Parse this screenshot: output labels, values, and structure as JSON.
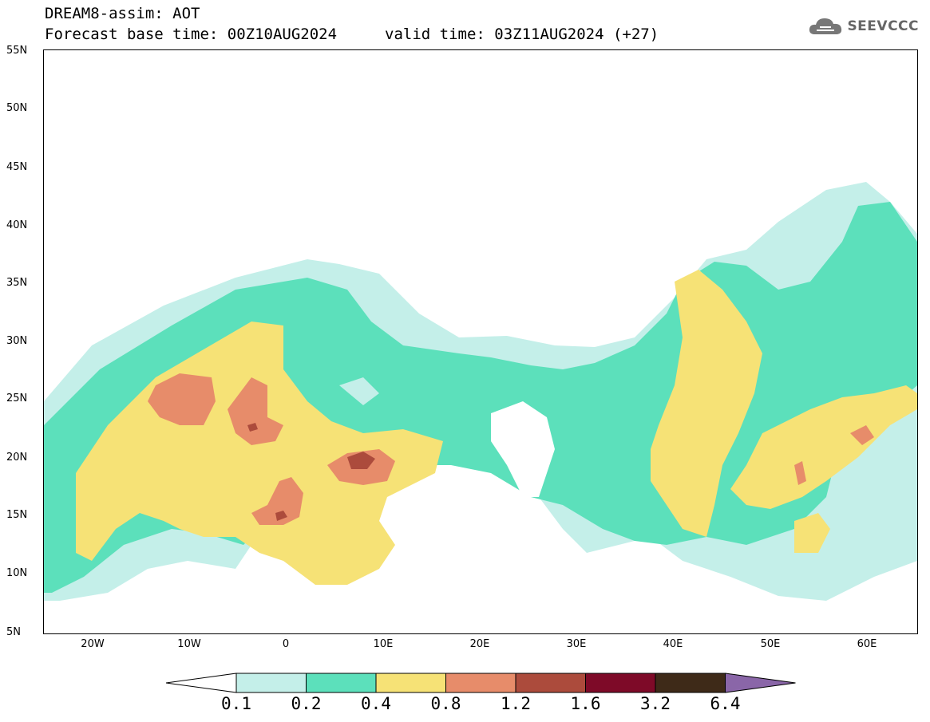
{
  "header": {
    "title_line1": "DREAM8-assim: AOT",
    "title_line2": "Forecast base time: 00Z10AUG2024",
    "valid_time": "valid time: 03Z11AUG2024 (+27)",
    "logo_text": "SEEVCCC",
    "logo_icon": "cloud-icon"
  },
  "map": {
    "lat_labels": [
      "55N",
      "50N",
      "45N",
      "40N",
      "35N",
      "30N",
      "25N",
      "20N",
      "15N",
      "10N",
      "5N"
    ],
    "lon_labels": [
      "20W",
      "10W",
      "0",
      "10E",
      "20E",
      "30E",
      "40E",
      "50E",
      "60E"
    ]
  },
  "legend": {
    "thresholds": [
      "0.1",
      "0.2",
      "0.4",
      "0.8",
      "1.2",
      "1.6",
      "3.2",
      "6.4"
    ],
    "colors": [
      "#c4efe9",
      "#5ce0bb",
      "#f6e276",
      "#e78c6a",
      "#ac4b3c",
      "#7e0a28",
      "#3e2a18",
      "#8a66a8"
    ],
    "below_color": "#ffffff"
  },
  "colors": {
    "very_light": "#c4efe9",
    "light": "#5ce0bb",
    "medium": "#f6e276",
    "high": "#e78c6a",
    "very_high": "#ac4b3c",
    "extreme": "#7e0a28"
  }
}
